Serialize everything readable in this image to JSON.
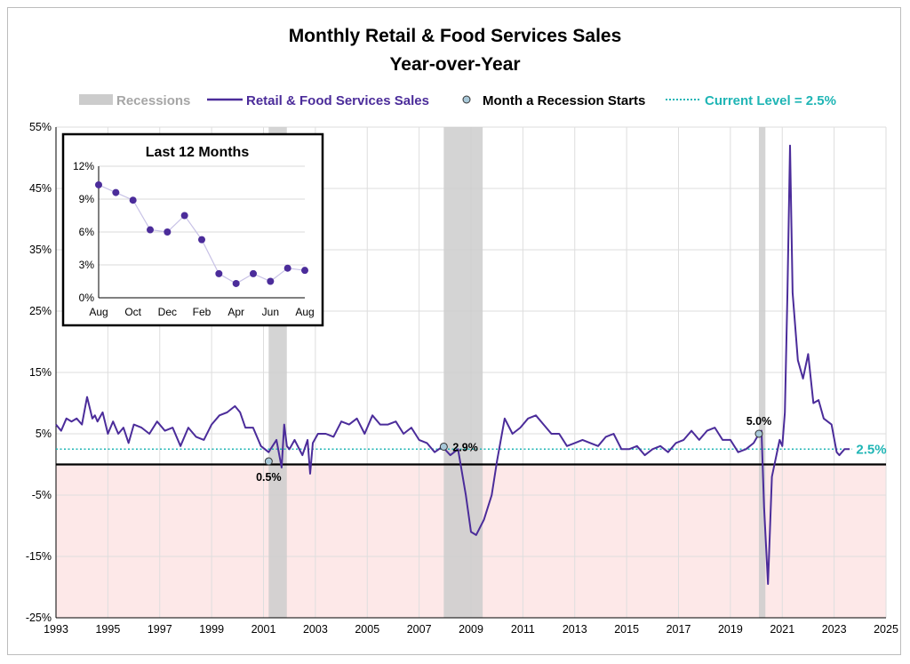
{
  "colors": {
    "series": "#4B2C9A",
    "recession": "#cccccc",
    "current_level": "#1fb5b5",
    "negative_zone": "#fde8e8",
    "grid": "#dedede",
    "zero_line": "#000000"
  },
  "chart_data": {
    "type": "line",
    "title": "Monthly Retail & Food Services Sales",
    "subtitle": "Year-over-Year",
    "ylim": [
      -25,
      55
    ],
    "y_ticks": [
      "55%",
      "45%",
      "35%",
      "25%",
      "15%",
      "5%",
      "-5%",
      "-15%",
      "-25%"
    ],
    "y_tick_values": [
      55,
      45,
      35,
      25,
      15,
      5,
      -5,
      -15,
      -25
    ],
    "xlim": [
      1993,
      2025
    ],
    "x_ticks": [
      "1993",
      "1995",
      "1997",
      "1999",
      "2001",
      "2003",
      "2005",
      "2007",
      "2009",
      "2011",
      "2013",
      "2015",
      "2017",
      "2019",
      "2021",
      "2023",
      "2025"
    ],
    "x_tick_values": [
      1993,
      1995,
      1997,
      1999,
      2001,
      2003,
      2005,
      2007,
      2009,
      2011,
      2013,
      2015,
      2017,
      2019,
      2021,
      2023,
      2025
    ],
    "grid": true,
    "legend": {
      "recessions": "Recessions",
      "series": "Retail & Food Services Sales",
      "recession_start": "Month a Recession Starts",
      "current_level": "Current Level = 2.5%"
    },
    "recessions": [
      [
        2001.2,
        2001.9
      ],
      [
        2007.95,
        2009.45
      ],
      [
        2020.1,
        2020.35
      ]
    ],
    "current_level": 2.5,
    "current_level_label": "2.5%",
    "recession_starts": [
      {
        "x": 2001.2,
        "y": 0.5,
        "label": "0.5%"
      },
      {
        "x": 2007.95,
        "y": 2.9,
        "label": "2.9%"
      },
      {
        "x": 2020.1,
        "y": 5.0,
        "label": "5.0%"
      }
    ],
    "series": [
      {
        "name": "Retail & Food Services Sales",
        "x": [
          1993.0,
          1993.2,
          1993.4,
          1993.6,
          1993.8,
          1994.0,
          1994.2,
          1994.4,
          1994.5,
          1994.6,
          1994.8,
          1995.0,
          1995.2,
          1995.4,
          1995.6,
          1995.8,
          1996.0,
          1996.3,
          1996.6,
          1996.9,
          1997.2,
          1997.5,
          1997.8,
          1998.1,
          1998.4,
          1998.7,
          1999.0,
          1999.3,
          1999.6,
          1999.9,
          2000.1,
          2000.3,
          2000.6,
          2000.9,
          2001.2,
          2001.5,
          2001.7,
          2001.8,
          2001.9,
          2002.0,
          2002.2,
          2002.5,
          2002.7,
          2002.8,
          2002.9,
          2003.1,
          2003.4,
          2003.7,
          2004.0,
          2004.3,
          2004.6,
          2004.9,
          2005.2,
          2005.5,
          2005.8,
          2006.1,
          2006.4,
          2006.7,
          2007.0,
          2007.3,
          2007.6,
          2007.9,
          2008.2,
          2008.5,
          2008.8,
          2009.0,
          2009.2,
          2009.5,
          2009.8,
          2010.0,
          2010.3,
          2010.6,
          2010.9,
          2011.2,
          2011.5,
          2011.8,
          2012.1,
          2012.4,
          2012.7,
          2013.0,
          2013.3,
          2013.6,
          2013.9,
          2014.2,
          2014.5,
          2014.8,
          2015.1,
          2015.4,
          2015.7,
          2016.0,
          2016.3,
          2016.6,
          2016.9,
          2017.2,
          2017.5,
          2017.8,
          2018.1,
          2018.4,
          2018.7,
          2019.0,
          2019.3,
          2019.6,
          2019.9,
          2020.1,
          2020.2,
          2020.3,
          2020.45,
          2020.6,
          2020.9,
          2021.0,
          2021.1,
          2021.2,
          2021.3,
          2021.4,
          2021.6,
          2021.8,
          2022.0,
          2022.2,
          2022.4,
          2022.6,
          2022.9,
          2023.1,
          2023.2,
          2023.4,
          2023.6
        ],
        "y": [
          6.5,
          5.5,
          7.5,
          7,
          7.5,
          6.5,
          11,
          7.5,
          8,
          7,
          8.5,
          5,
          7,
          5,
          6,
          3.5,
          6.5,
          6,
          5,
          7,
          5.5,
          6,
          3,
          6,
          4.5,
          4,
          6.5,
          8,
          8.5,
          9.5,
          8.5,
          6,
          6,
          3,
          2,
          4,
          -0.5,
          6.5,
          3,
          2.5,
          4,
          1.5,
          4,
          -1.5,
          3.5,
          5,
          5,
          4.5,
          7,
          6.5,
          7.5,
          5,
          8,
          6.5,
          6.5,
          7,
          5,
          6,
          4,
          3.5,
          2,
          2.9,
          1.5,
          2.5,
          -5,
          -11,
          -11.5,
          -9,
          -5,
          0.5,
          7.5,
          5,
          6,
          7.5,
          8,
          6.5,
          5,
          5,
          3,
          3.5,
          4,
          3.5,
          3,
          4.5,
          5,
          2.5,
          2.5,
          3,
          1.5,
          2.5,
          3,
          2,
          3.5,
          4,
          5.5,
          4,
          5.5,
          6,
          4,
          4,
          2,
          2.5,
          3.5,
          5,
          5.5,
          -7,
          -19.5,
          -2,
          4,
          3,
          8.5,
          28,
          52,
          28,
          17,
          14,
          18,
          10,
          10.5,
          7.5,
          6.5,
          2,
          1.5,
          2.5,
          2.5
        ]
      }
    ]
  },
  "inset": {
    "title": "Last 12 Months",
    "ylim": [
      0,
      12
    ],
    "y_ticks": [
      "12%",
      "9%",
      "6%",
      "3%",
      "0%"
    ],
    "y_tick_values": [
      12,
      9,
      6,
      3,
      0
    ],
    "x_ticks": [
      "Aug",
      "Oct",
      "Dec",
      "Feb",
      "Apr",
      "Jun",
      "Aug"
    ],
    "x_tick_index": [
      0,
      2,
      4,
      6,
      8,
      10,
      12
    ],
    "values": [
      10.3,
      9.6,
      8.9,
      6.2,
      6.0,
      7.5,
      5.3,
      2.2,
      1.3,
      2.2,
      1.5,
      2.7,
      2.5
    ]
  }
}
